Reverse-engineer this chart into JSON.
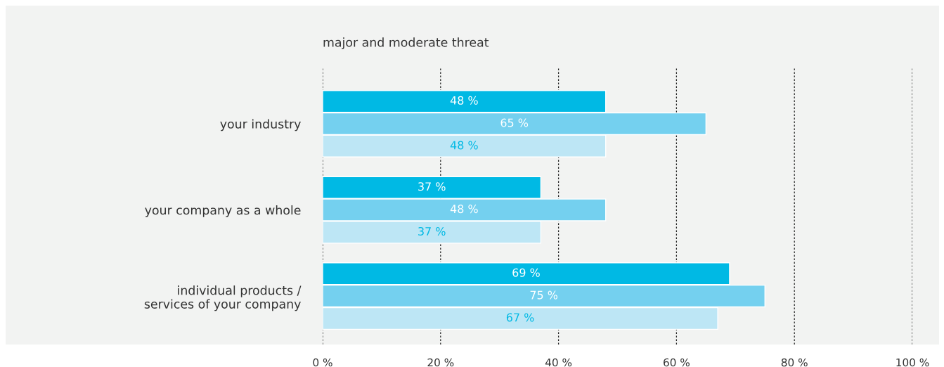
{
  "chart_data": {
    "type": "bar",
    "orientation": "horizontal",
    "title": "major and moderate threat",
    "categories": [
      "your industry",
      "your company as a whole",
      "individual products /\nservices of your company"
    ],
    "series": [
      {
        "color": "#00b9e4",
        "values": [
          48,
          37,
          69
        ]
      },
      {
        "color": "#74d0ef",
        "values": [
          65,
          48,
          75
        ]
      },
      {
        "color": "#bde6f5",
        "values": [
          48,
          37,
          67
        ]
      }
    ],
    "value_labels": [
      [
        "48 %",
        "37 %",
        "69 %"
      ],
      [
        "65 %",
        "48 %",
        "75 %"
      ],
      [
        "48 %",
        "37 %",
        "67 %"
      ]
    ],
    "xlim": [
      0,
      100
    ],
    "xticks": [
      {
        "value": 0,
        "label": "0 %"
      },
      {
        "value": 20,
        "label": "20 %"
      },
      {
        "value": 40,
        "label": "40 %"
      },
      {
        "value": 60,
        "label": "60 %"
      },
      {
        "value": 80,
        "label": "80 %"
      },
      {
        "value": 100,
        "label": "100 %"
      }
    ],
    "grid": "x",
    "legend": false
  }
}
